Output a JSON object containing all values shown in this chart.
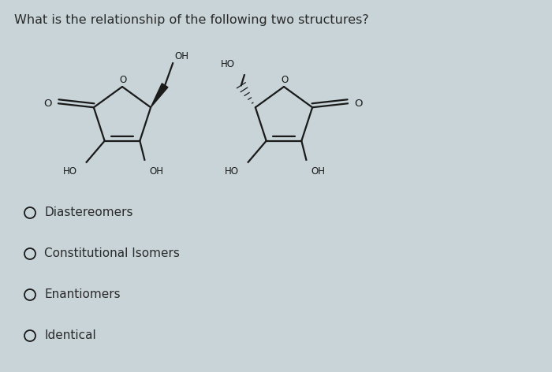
{
  "title": "What is the relationship of the following two structures?",
  "title_fontsize": 11.5,
  "bg_color": "#c8d4d8",
  "text_color": "#2a2a2a",
  "options": [
    "Diastereomers",
    "Constitutional Isomers",
    "Enantiomers",
    "Identical"
  ],
  "lw": 1.6,
  "fontsize_struct": 8.5,
  "fontsize_option": 11.0
}
